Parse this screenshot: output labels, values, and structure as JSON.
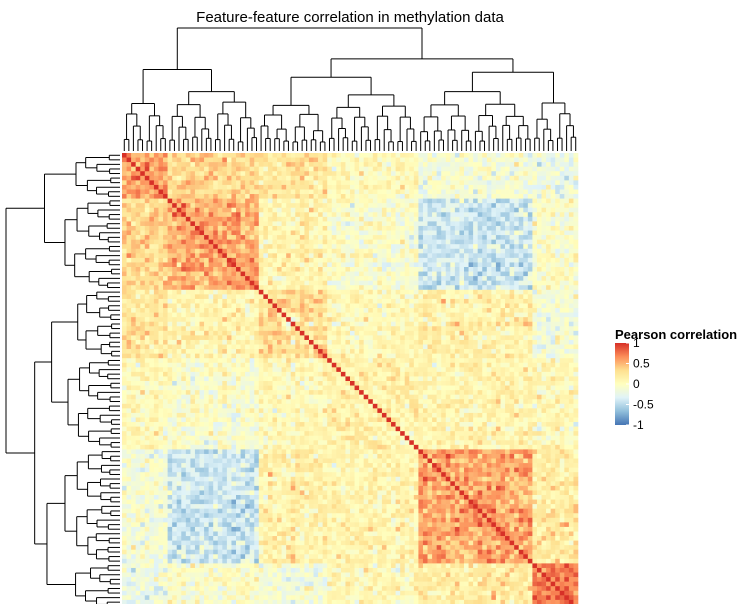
{
  "chart_data": {
    "type": "heatmap",
    "title": "Feature-feature correlation in methylation data",
    "n_features": 100,
    "matrix": "symmetric",
    "diagonal_value": 1,
    "row_dendrogram": true,
    "column_dendrogram": true,
    "clusters": [
      {
        "size": 10,
        "within_correlation": 0.6
      },
      {
        "size": 20,
        "within_correlation": 0.55
      },
      {
        "size": 15,
        "within_correlation": 0.3
      },
      {
        "size": 20,
        "within_correlation": 0.15
      },
      {
        "size": 25,
        "within_correlation": 0.55
      },
      {
        "size": 10,
        "within_correlation": 0.75
      }
    ],
    "color_scale": {
      "colors": [
        "#4575b4",
        "#91bfdb",
        "#e0f3f8",
        "#ffffbf",
        "#fee090",
        "#fc8d59",
        "#d73027"
      ],
      "domain": [
        -1,
        1
      ]
    },
    "legend": {
      "title": "Pearson correlation",
      "ticks": [
        "1",
        "0.5",
        "0",
        "-0.5",
        "-1"
      ],
      "tick_values": [
        1,
        0.5,
        0,
        -0.5,
        -1
      ],
      "position": "right"
    }
  }
}
